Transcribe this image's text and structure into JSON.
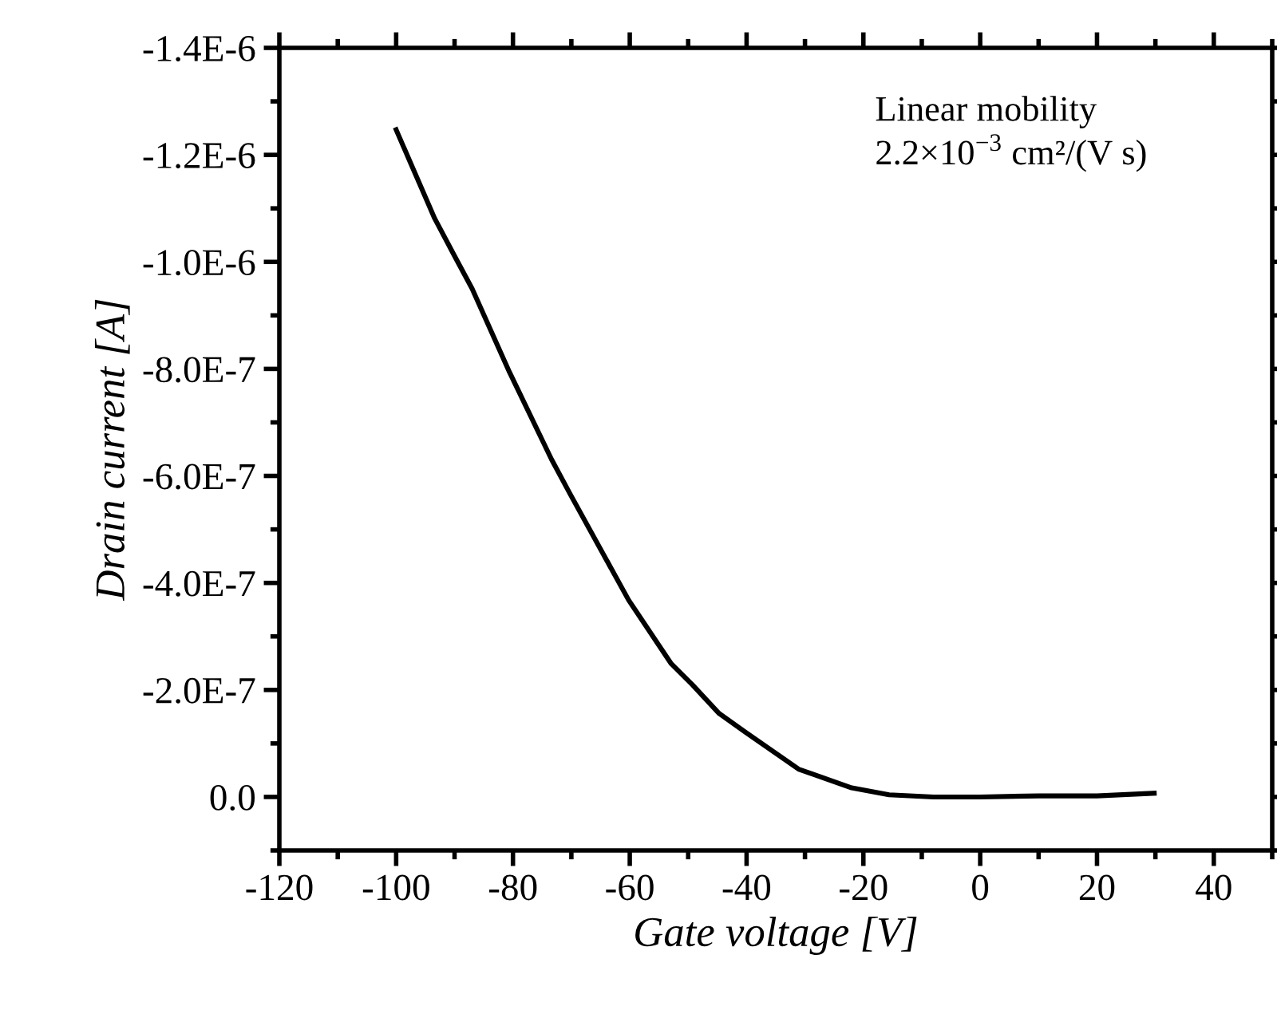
{
  "chart_data": {
    "type": "line",
    "xlabel": "Gate voltage [V]",
    "ylabel": "Drain current [A]",
    "annotations": [
      "Linear mobility\n2.2×10$^{−3}$ cm²/(V s)"
    ],
    "xlim": [
      -120,
      50
    ],
    "xticks": [
      -120,
      -100,
      -80,
      -60,
      -40,
      -20,
      0,
      20,
      40
    ],
    "ylim": [
      1e-07,
      -1.4e-06
    ],
    "yticks": [
      {
        "value": 0,
        "label": "0.0"
      },
      {
        "value": -2e-07,
        "label": "-2.0E-7"
      },
      {
        "value": -4e-07,
        "label": "-4.0E-7"
      },
      {
        "value": -6e-07,
        "label": "-6.0E-7"
      },
      {
        "value": -8e-07,
        "label": "-8.0E-7"
      },
      {
        "value": -1e-06,
        "label": "-1.0E-6"
      },
      {
        "value": -1.2e-06,
        "label": "-1.2E-6"
      },
      {
        "value": -1.4e-06,
        "label": "-1.4E-6"
      }
    ],
    "grid": false,
    "legend": false,
    "marker": "none",
    "line_style": "solid",
    "series": [
      {
        "color": "#000000",
        "x": [
          -100,
          -93.4,
          -89.9,
          -87,
          -80.6,
          -73.4,
          -70.2,
          -60.2,
          -52.9,
          -49.3,
          -44.7,
          -40.2,
          -31.1,
          -22,
          -15.6,
          -8,
          0,
          10,
          20,
          29.8
        ],
        "values": [
          -1.247e-06,
          -1.081e-06,
          -1.009e-06,
          -9.5e-07,
          -7.94e-07,
          -6.31e-07,
          -5.66e-07,
          -3.68e-07,
          -2.49e-07,
          -2.1e-07,
          -1.56e-07,
          -1.21e-07,
          -5.2e-08,
          -1.7e-08,
          -4e-09,
          0,
          0,
          -2e-09,
          -2e-09,
          -7e-09
        ]
      }
    ]
  }
}
